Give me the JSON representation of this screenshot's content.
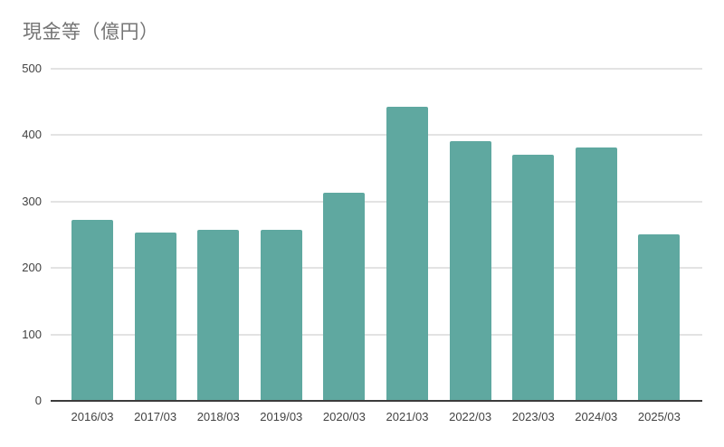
{
  "title": "現金等（億円）",
  "colors": {
    "bar": "#5fa8a0",
    "title_text": "#757575",
    "tick_text": "#424242",
    "gridline": "#e3e3e3",
    "axis_line": "#3c3c3c",
    "background": "#ffffff"
  },
  "chart_data": {
    "type": "bar",
    "title": "現金等（億円）",
    "categories": [
      "2016/03",
      "2017/03",
      "2018/03",
      "2019/03",
      "2020/03",
      "2021/03",
      "2022/03",
      "2023/03",
      "2024/03",
      "2025/03"
    ],
    "values": [
      273,
      253,
      258,
      258,
      313,
      443,
      391,
      370,
      381,
      251
    ],
    "xlabel": "",
    "ylabel": "",
    "ylim": [
      0,
      500
    ],
    "yticks": [
      0,
      100,
      200,
      300,
      400,
      500
    ],
    "grid": true,
    "legend": false
  }
}
